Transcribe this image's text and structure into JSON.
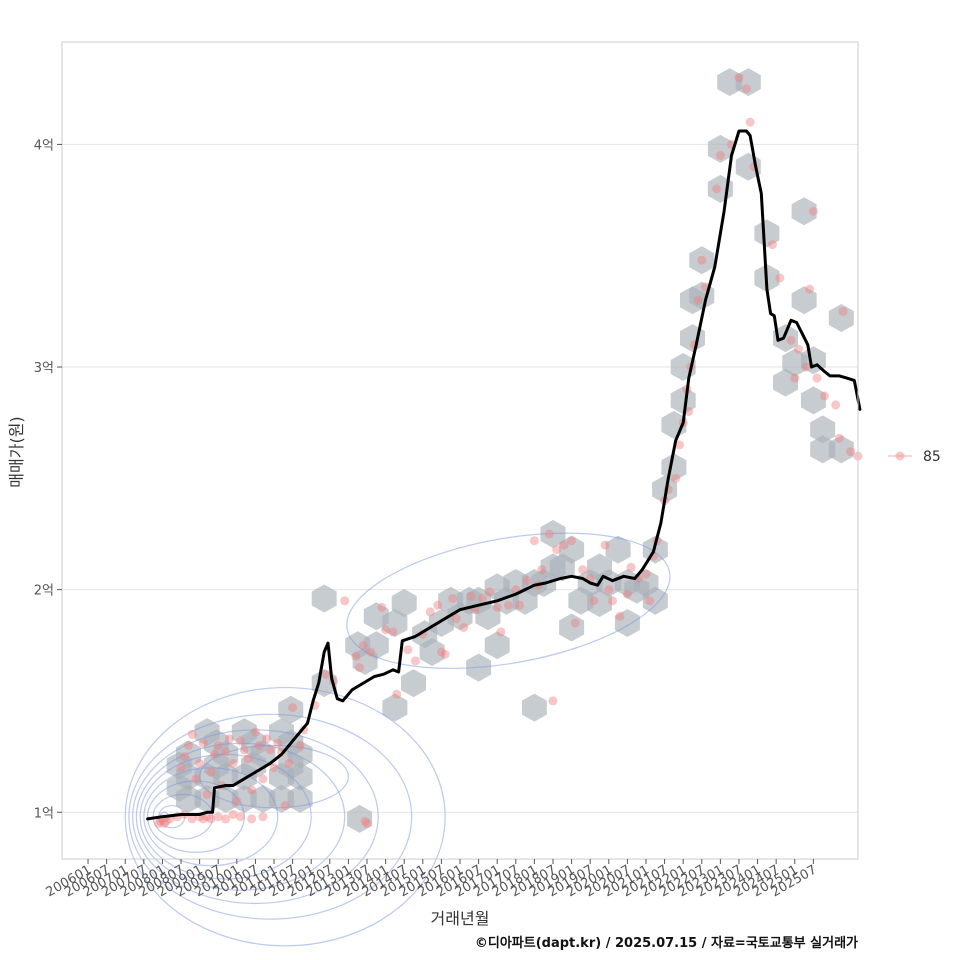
{
  "chart_data": {
    "type": "scatter",
    "xlabel": "거래년월",
    "ylabel": "매매가(원)",
    "caption": "©디아파트(dapt.kr) / 2025.07.15 / 자료=국토교통부 실거래가",
    "x_tick_labels": [
      "200601",
      "200607",
      "200701",
      "200707",
      "200801",
      "200807",
      "200901",
      "200907",
      "201001",
      "201007",
      "201101",
      "201107",
      "201201",
      "201207",
      "201301",
      "201307",
      "201401",
      "201407",
      "201501",
      "201507",
      "201601",
      "201607",
      "201701",
      "201707",
      "201801",
      "201807",
      "201901",
      "201907",
      "202001",
      "202007",
      "202101",
      "202107",
      "202201",
      "202207",
      "202301",
      "202307",
      "202401",
      "202407",
      "202501",
      "202507"
    ],
    "y_ticks": [
      {
        "value": 1,
        "label": "1억"
      },
      {
        "value": 2,
        "label": "2억"
      },
      {
        "value": 3,
        "label": "3억"
      },
      {
        "value": 4,
        "label": "4억"
      }
    ],
    "xlim": [
      2005.3,
      2026.7
    ],
    "ylim": [
      0.79,
      4.46
    ],
    "legend": {
      "position": "right",
      "entries": [
        {
          "label": "85",
          "color": "#f08080"
        }
      ]
    },
    "colors": {
      "points": "#f08080",
      "hex": "#a9b1b8",
      "trend": "#000000",
      "contour": "#7b95e0",
      "grid": "#e6e6e6",
      "border": "#cccccc"
    },
    "trend_line": {
      "name": "trend",
      "points": [
        [
          2007.6,
          0.97
        ],
        [
          2008.0,
          0.98
        ],
        [
          2008.5,
          0.99
        ],
        [
          2009.0,
          0.99
        ],
        [
          2009.2,
          1.0
        ],
        [
          2009.35,
          1.0
        ],
        [
          2009.4,
          1.11
        ],
        [
          2009.7,
          1.12
        ],
        [
          2009.9,
          1.12
        ],
        [
          2010.1,
          1.14
        ],
        [
          2010.4,
          1.17
        ],
        [
          2010.6,
          1.19
        ],
        [
          2010.9,
          1.22
        ],
        [
          2011.2,
          1.26
        ],
        [
          2011.4,
          1.3
        ],
        [
          2011.6,
          1.34
        ],
        [
          2011.9,
          1.4
        ],
        [
          2012.05,
          1.5
        ],
        [
          2012.2,
          1.58
        ],
        [
          2012.35,
          1.72
        ],
        [
          2012.45,
          1.76
        ],
        [
          2012.55,
          1.6
        ],
        [
          2012.7,
          1.51
        ],
        [
          2012.85,
          1.5
        ],
        [
          2013.1,
          1.55
        ],
        [
          2013.4,
          1.58
        ],
        [
          2013.7,
          1.61
        ],
        [
          2013.95,
          1.62
        ],
        [
          2014.2,
          1.64
        ],
        [
          2014.35,
          1.63
        ],
        [
          2014.45,
          1.77
        ],
        [
          2014.8,
          1.79
        ],
        [
          2015.2,
          1.83
        ],
        [
          2015.6,
          1.87
        ],
        [
          2016.0,
          1.91
        ],
        [
          2016.5,
          1.93
        ],
        [
          2017.0,
          1.95
        ],
        [
          2017.5,
          1.98
        ],
        [
          2018.0,
          2.02
        ],
        [
          2018.3,
          2.03
        ],
        [
          2018.7,
          2.05
        ],
        [
          2019.0,
          2.06
        ],
        [
          2019.3,
          2.05
        ],
        [
          2019.5,
          2.03
        ],
        [
          2019.7,
          2.02
        ],
        [
          2019.85,
          2.06
        ],
        [
          2020.1,
          2.04
        ],
        [
          2020.4,
          2.06
        ],
        [
          2020.7,
          2.05
        ],
        [
          2020.9,
          2.09
        ],
        [
          2021.2,
          2.17
        ],
        [
          2021.4,
          2.3
        ],
        [
          2021.6,
          2.5
        ],
        [
          2021.8,
          2.67
        ],
        [
          2022.0,
          2.75
        ],
        [
          2022.15,
          2.95
        ],
        [
          2022.35,
          3.1
        ],
        [
          2022.6,
          3.3
        ],
        [
          2022.85,
          3.45
        ],
        [
          2023.1,
          3.7
        ],
        [
          2023.3,
          3.95
        ],
        [
          2023.5,
          4.06
        ],
        [
          2023.7,
          4.06
        ],
        [
          2023.8,
          4.04
        ],
        [
          2023.95,
          3.9
        ],
        [
          2024.1,
          3.78
        ],
        [
          2024.25,
          3.35
        ],
        [
          2024.35,
          3.24
        ],
        [
          2024.45,
          3.23
        ],
        [
          2024.55,
          3.12
        ],
        [
          2024.7,
          3.13
        ],
        [
          2024.9,
          3.21
        ],
        [
          2025.05,
          3.2
        ],
        [
          2025.2,
          3.15
        ],
        [
          2025.35,
          3.1
        ],
        [
          2025.45,
          3.0
        ],
        [
          2025.6,
          3.01
        ],
        [
          2025.8,
          2.98
        ],
        [
          2025.95,
          2.96
        ],
        [
          2026.2,
          2.96
        ],
        [
          2026.4,
          2.95
        ],
        [
          2026.6,
          2.94
        ],
        [
          2026.75,
          2.81
        ]
      ]
    },
    "hex_bins": [
      [
        2008.7,
        1.06
      ],
      [
        2008.7,
        1.26
      ],
      [
        2009.2,
        1.16
      ],
      [
        2009.2,
        1.36
      ],
      [
        2009.7,
        1.06
      ],
      [
        2009.7,
        1.26
      ],
      [
        2010.2,
        1.16
      ],
      [
        2010.2,
        1.36
      ],
      [
        2010.7,
        1.06
      ],
      [
        2010.7,
        1.26
      ],
      [
        2011.2,
        1.16
      ],
      [
        2011.2,
        1.36
      ],
      [
        2011.7,
        1.06
      ],
      [
        2011.7,
        1.26
      ],
      [
        2008.7,
        1.16
      ],
      [
        2009.2,
        1.06
      ],
      [
        2009.7,
        1.16
      ],
      [
        2010.2,
        1.06
      ],
      [
        2011.2,
        1.06
      ],
      [
        2011.7,
        1.16
      ],
      [
        2008.45,
        1.21
      ],
      [
        2008.45,
        1.11
      ],
      [
        2009.45,
        1.21
      ],
      [
        2009.45,
        1.31
      ],
      [
        2010.45,
        1.21
      ],
      [
        2010.45,
        1.31
      ],
      [
        2011.45,
        1.21
      ],
      [
        2011.45,
        1.31
      ],
      [
        2011.45,
        1.46
      ],
      [
        2012.35,
        1.58
      ],
      [
        2012.35,
        1.96
      ],
      [
        2013.45,
        1.68
      ],
      [
        2013.75,
        1.75
      ],
      [
        2014.25,
        1.47
      ],
      [
        2014.25,
        1.85
      ],
      [
        2014.5,
        1.94
      ],
      [
        2014.75,
        1.58
      ],
      [
        2015.05,
        1.8
      ],
      [
        2015.5,
        1.85
      ],
      [
        2015.75,
        1.95
      ],
      [
        2016.0,
        1.88
      ],
      [
        2016.25,
        1.95
      ],
      [
        2016.5,
        1.95
      ],
      [
        2016.75,
        1.88
      ],
      [
        2017.0,
        2.01
      ],
      [
        2017.25,
        1.95
      ],
      [
        2017.5,
        2.03
      ],
      [
        2017.75,
        1.95
      ],
      [
        2018.0,
        2.03
      ],
      [
        2018.25,
        2.03
      ],
      [
        2018.5,
        2.1
      ],
      [
        2018.5,
        2.25
      ],
      [
        2018.75,
        2.1
      ],
      [
        2019.0,
        2.18
      ],
      [
        2019.25,
        1.95
      ],
      [
        2019.5,
        2.03
      ],
      [
        2019.75,
        2.1
      ],
      [
        2019.75,
        1.94
      ],
      [
        2020.0,
        2.03
      ],
      [
        2020.25,
        2.18
      ],
      [
        2020.5,
        2.03
      ],
      [
        2020.75,
        2.0
      ],
      [
        2021.0,
        2.03
      ],
      [
        2021.25,
        2.18
      ],
      [
        2021.25,
        1.95
      ],
      [
        2021.5,
        2.45
      ],
      [
        2021.75,
        2.55
      ],
      [
        2021.75,
        2.74
      ],
      [
        2022.0,
        2.85
      ],
      [
        2022.0,
        3.0
      ],
      [
        2022.25,
        3.13
      ],
      [
        2022.25,
        3.3
      ],
      [
        2022.5,
        3.48
      ],
      [
        2022.5,
        3.32
      ],
      [
        2023.0,
        3.8
      ],
      [
        2023.0,
        3.98
      ],
      [
        2023.25,
        4.28
      ],
      [
        2023.75,
        4.28
      ],
      [
        2023.75,
        3.9
      ],
      [
        2024.25,
        3.6
      ],
      [
        2024.25,
        3.4
      ],
      [
        2024.75,
        3.13
      ],
      [
        2024.75,
        2.93
      ],
      [
        2025.0,
        3.02
      ],
      [
        2025.25,
        3.3
      ],
      [
        2025.25,
        3.7
      ],
      [
        2025.5,
        2.85
      ],
      [
        2025.5,
        3.03
      ],
      [
        2025.75,
        2.72
      ],
      [
        2025.75,
        2.63
      ],
      [
        2026.25,
        3.22
      ],
      [
        2026.25,
        2.63
      ],
      [
        2018.0,
        1.47
      ],
      [
        2013.3,
        0.97
      ],
      [
        2013.25,
        1.75
      ],
      [
        2013.75,
        1.88
      ],
      [
        2015.25,
        1.72
      ],
      [
        2016.5,
        1.65
      ],
      [
        2017.0,
        1.75
      ],
      [
        2019.0,
        1.83
      ],
      [
        2020.5,
        1.85
      ]
    ],
    "scatter_points": [
      [
        2007.9,
        0.95
      ],
      [
        2007.95,
        0.96
      ],
      [
        2008.0,
        0.97
      ],
      [
        2008.05,
        0.95
      ],
      [
        2008.1,
        0.96
      ],
      [
        2008.2,
        0.97
      ],
      [
        2008.4,
        0.98
      ],
      [
        2008.6,
        0.99
      ],
      [
        2008.8,
        0.97
      ],
      [
        2009.0,
        0.98
      ],
      [
        2009.1,
        0.97
      ],
      [
        2009.2,
        0.98
      ],
      [
        2009.3,
        0.97
      ],
      [
        2009.5,
        0.98
      ],
      [
        2009.7,
        0.97
      ],
      [
        2009.9,
        0.99
      ],
      [
        2010.1,
        0.98
      ],
      [
        2010.4,
        0.97
      ],
      [
        2010.7,
        0.98
      ],
      [
        2008.5,
        1.2
      ],
      [
        2008.6,
        1.25
      ],
      [
        2008.7,
        1.3
      ],
      [
        2008.8,
        1.35
      ],
      [
        2008.9,
        1.15
      ],
      [
        2009.0,
        1.22
      ],
      [
        2009.1,
        1.31
      ],
      [
        2009.2,
        1.08
      ],
      [
        2009.3,
        1.18
      ],
      [
        2009.4,
        1.26
      ],
      [
        2009.5,
        1.3
      ],
      [
        2009.6,
        1.12
      ],
      [
        2009.7,
        1.27
      ],
      [
        2009.8,
        1.33
      ],
      [
        2009.9,
        1.22
      ],
      [
        2010.0,
        1.05
      ],
      [
        2010.1,
        1.32
      ],
      [
        2010.2,
        1.28
      ],
      [
        2010.3,
        1.24
      ],
      [
        2010.4,
        1.1
      ],
      [
        2010.5,
        1.36
      ],
      [
        2010.6,
        1.3
      ],
      [
        2010.7,
        1.15
      ],
      [
        2010.8,
        1.33
      ],
      [
        2010.9,
        1.28
      ],
      [
        2011.0,
        1.2
      ],
      [
        2011.1,
        1.31
      ],
      [
        2011.2,
        1.27
      ],
      [
        2011.3,
        1.03
      ],
      [
        2011.4,
        1.22
      ],
      [
        2011.5,
        1.47
      ],
      [
        2011.7,
        1.3
      ],
      [
        2011.8,
        1.37
      ],
      [
        2012.1,
        1.48
      ],
      [
        2012.4,
        1.62
      ],
      [
        2012.6,
        1.59
      ],
      [
        2012.9,
        1.95
      ],
      [
        2013.2,
        1.7
      ],
      [
        2013.3,
        1.65
      ],
      [
        2013.4,
        1.75
      ],
      [
        2013.45,
        0.96
      ],
      [
        2013.5,
        0.95
      ],
      [
        2013.6,
        1.72
      ],
      [
        2013.9,
        1.92
      ],
      [
        2014.0,
        1.82
      ],
      [
        2014.2,
        1.81
      ],
      [
        2014.3,
        1.53
      ],
      [
        2014.6,
        1.73
      ],
      [
        2014.8,
        1.68
      ],
      [
        2015.0,
        1.8
      ],
      [
        2015.2,
        1.9
      ],
      [
        2015.4,
        1.93
      ],
      [
        2015.5,
        1.72
      ],
      [
        2015.6,
        1.71
      ],
      [
        2015.8,
        1.96
      ],
      [
        2015.9,
        1.87
      ],
      [
        2016.1,
        1.83
      ],
      [
        2016.3,
        1.97
      ],
      [
        2016.4,
        1.91
      ],
      [
        2016.6,
        1.96
      ],
      [
        2016.8,
        1.99
      ],
      [
        2017.0,
        1.92
      ],
      [
        2017.1,
        1.81
      ],
      [
        2017.3,
        1.93
      ],
      [
        2017.5,
        2.0
      ],
      [
        2017.6,
        1.93
      ],
      [
        2017.8,
        2.04
      ],
      [
        2018.0,
        2.22
      ],
      [
        2018.1,
        2.02
      ],
      [
        2018.2,
        2.09
      ],
      [
        2018.4,
        2.25
      ],
      [
        2018.5,
        1.5
      ],
      [
        2018.6,
        2.18
      ],
      [
        2018.8,
        2.2
      ],
      [
        2019.0,
        2.22
      ],
      [
        2019.1,
        1.85
      ],
      [
        2019.3,
        2.09
      ],
      [
        2019.5,
        2.05
      ],
      [
        2019.6,
        1.95
      ],
      [
        2019.9,
        2.2
      ],
      [
        2020.0,
        2.0
      ],
      [
        2020.1,
        1.95
      ],
      [
        2020.3,
        1.88
      ],
      [
        2020.5,
        1.98
      ],
      [
        2020.6,
        2.1
      ],
      [
        2020.8,
        2.05
      ],
      [
        2021.0,
        2.07
      ],
      [
        2021.1,
        1.95
      ],
      [
        2021.2,
        2.15
      ],
      [
        2021.3,
        2.22
      ],
      [
        2021.5,
        2.4
      ],
      [
        2021.6,
        2.45
      ],
      [
        2021.8,
        2.5
      ],
      [
        2021.9,
        2.65
      ],
      [
        2022.0,
        2.75
      ],
      [
        2022.1,
        2.9
      ],
      [
        2022.15,
        2.8
      ],
      [
        2022.2,
        3.0
      ],
      [
        2022.3,
        3.1
      ],
      [
        2022.4,
        3.3
      ],
      [
        2022.5,
        3.48
      ],
      [
        2022.6,
        3.36
      ],
      [
        2022.9,
        3.8
      ],
      [
        2023.0,
        3.95
      ],
      [
        2023.3,
        4.0
      ],
      [
        2023.5,
        4.3
      ],
      [
        2023.7,
        4.25
      ],
      [
        2023.8,
        4.1
      ],
      [
        2023.9,
        3.9
      ],
      [
        2024.4,
        3.55
      ],
      [
        2024.6,
        3.4
      ],
      [
        2024.9,
        3.12
      ],
      [
        2025.0,
        2.95
      ],
      [
        2025.1,
        3.08
      ],
      [
        2025.3,
        3.0
      ],
      [
        2025.4,
        3.35
      ],
      [
        2025.5,
        3.7
      ],
      [
        2025.6,
        2.95
      ],
      [
        2025.8,
        2.87
      ],
      [
        2026.1,
        2.83
      ],
      [
        2026.2,
        2.68
      ],
      [
        2026.3,
        3.25
      ],
      [
        2026.5,
        2.62
      ],
      [
        2026.7,
        2.6
      ]
    ],
    "density_contours": [
      {
        "cx": 2008.05,
        "cy": 0.98,
        "rx": 0.12,
        "ry": 0.02
      },
      {
        "cx": 2008.25,
        "cy": 0.98,
        "rx": 0.35,
        "ry": 0.05
      },
      {
        "cx": 2008.55,
        "cy": 0.98,
        "rx": 0.8,
        "ry": 0.1
      },
      {
        "cx": 2008.9,
        "cy": 0.98,
        "rx": 1.3,
        "ry": 0.16
      },
      {
        "cx": 2009.3,
        "cy": 0.98,
        "rx": 1.8,
        "ry": 0.22
      },
      {
        "cx": 2009.7,
        "cy": 0.98,
        "rx": 2.3,
        "ry": 0.28
      },
      {
        "cx": 2010.1,
        "cy": 0.98,
        "rx": 2.8,
        "ry": 0.33
      },
      {
        "cx": 2010.5,
        "cy": 0.98,
        "rx": 3.3,
        "ry": 0.39
      },
      {
        "cx": 2010.9,
        "cy": 0.98,
        "rx": 3.8,
        "ry": 0.46
      },
      {
        "cx": 2011.3,
        "cy": 0.98,
        "rx": 4.3,
        "ry": 0.58
      },
      {
        "cx": 2011.0,
        "cy": 1.16,
        "rx": 2.0,
        "ry": 0.14
      }
    ],
    "density_band": {
      "cx": 2017.3,
      "cy": 1.95,
      "rx": 4.4,
      "ry": 0.28,
      "angle_deg": -10
    }
  }
}
